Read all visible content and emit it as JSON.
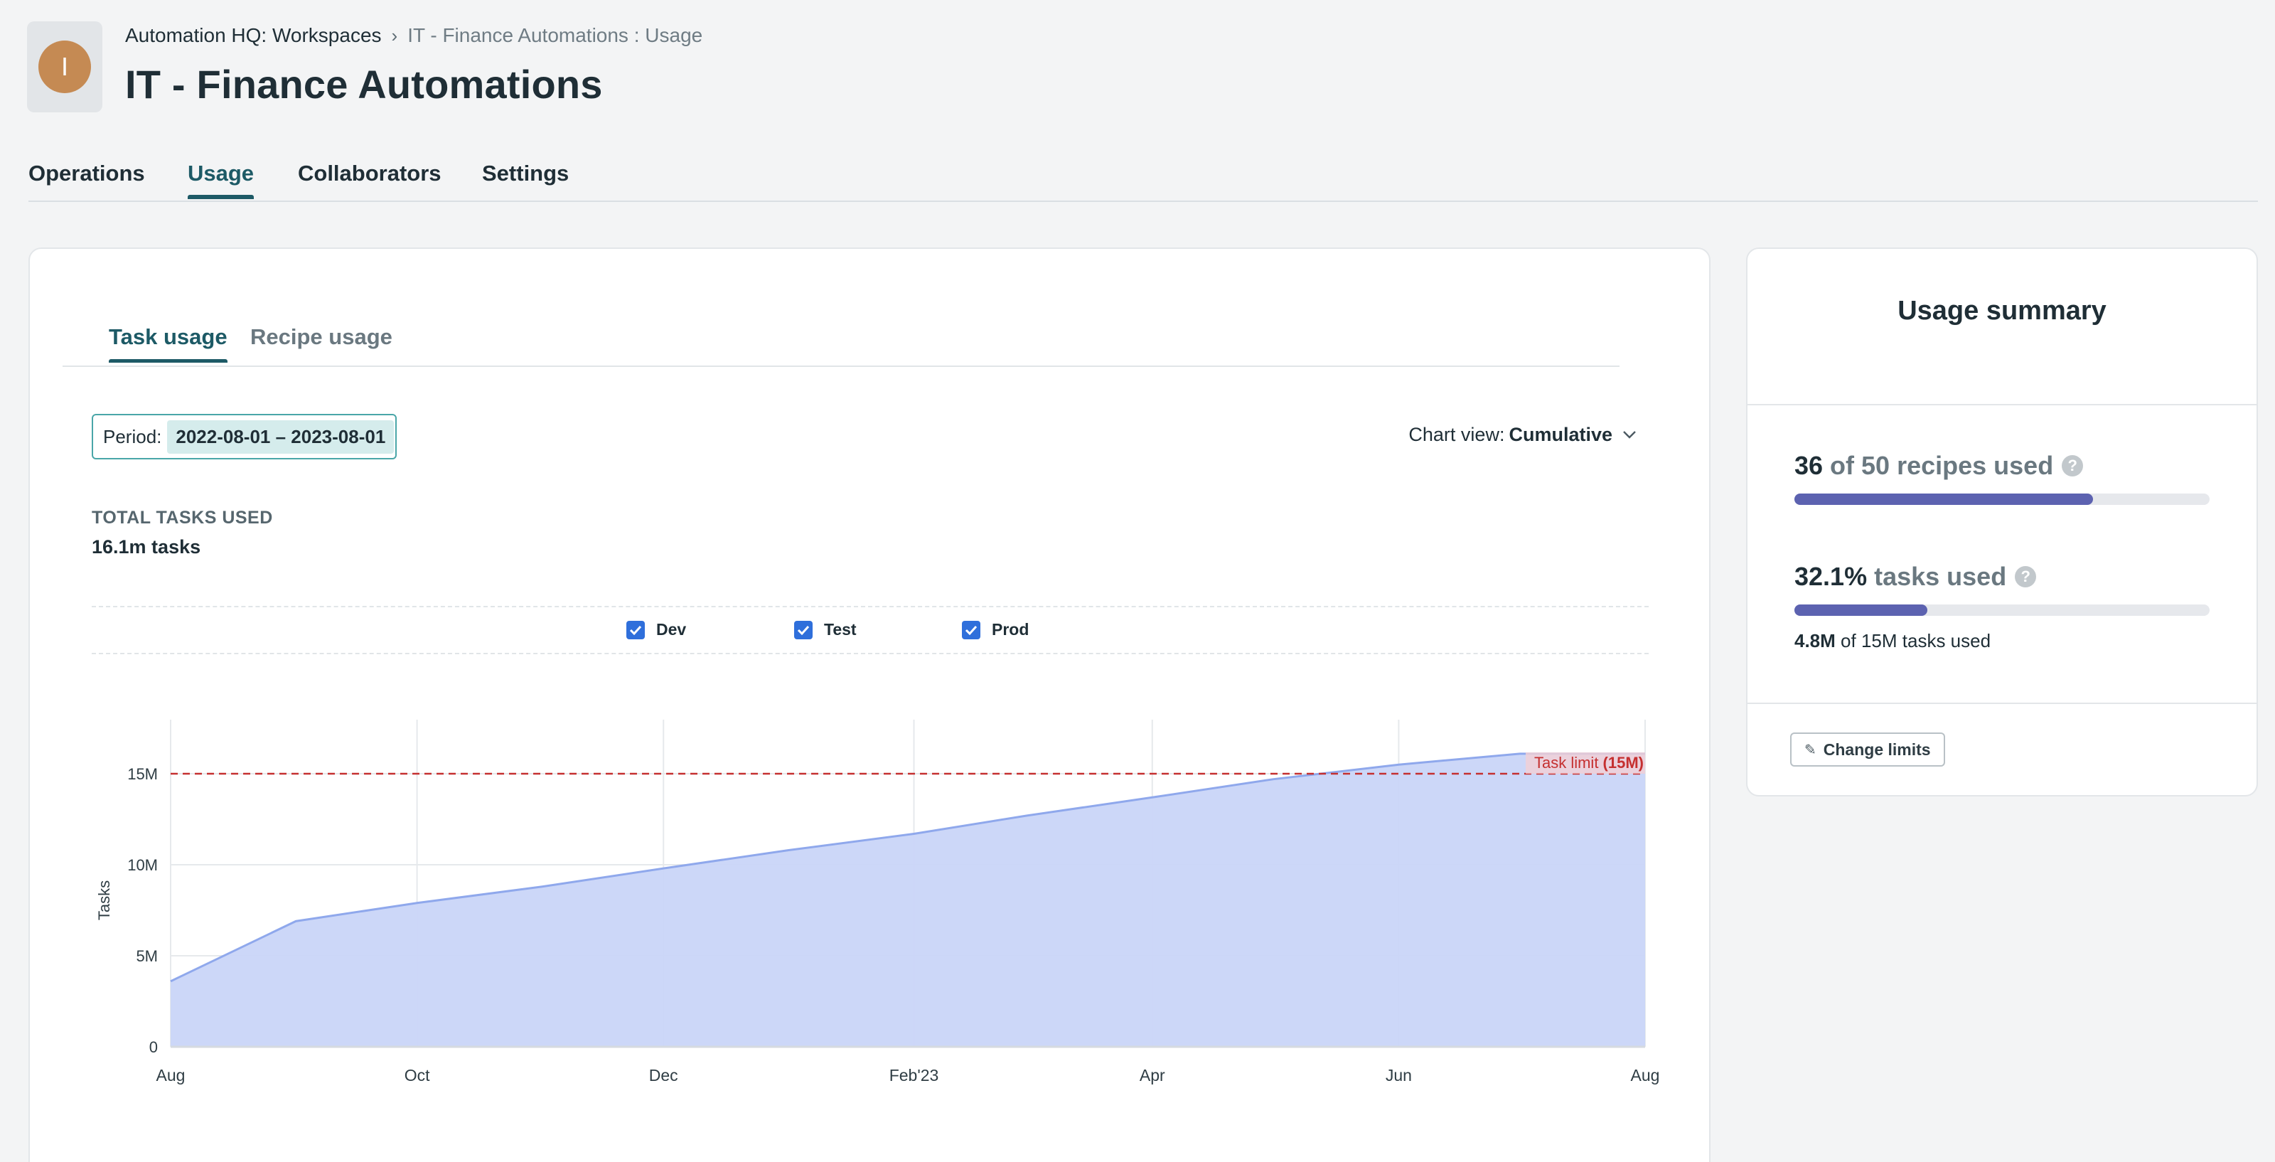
{
  "header": {
    "avatar_letter": "I",
    "breadcrumb": {
      "parent": "Automation HQ: Workspaces",
      "current": "IT - Finance Automations : Usage"
    },
    "title": "IT - Finance Automations"
  },
  "tabs": [
    "Operations",
    "Usage",
    "Collaborators",
    "Settings"
  ],
  "active_tab": "Usage",
  "usage": {
    "sub_tabs": [
      "Task usage",
      "Recipe usage"
    ],
    "active_sub_tab": "Task usage",
    "period_label": "Period:",
    "period_value": "2022-08-01 – 2023-08-01",
    "chart_view_label": "Chart view:",
    "chart_view_value": "Cumulative",
    "total_label": "TOTAL TASKS USED",
    "total_value": "16.1m tasks",
    "legend": [
      "Dev",
      "Test",
      "Prod"
    ]
  },
  "chart_data": {
    "type": "area",
    "ylabel": "Tasks",
    "x_ticks": [
      "Aug",
      "Oct",
      "Dec",
      "Feb'23",
      "Apr",
      "Jun",
      "Aug"
    ],
    "y_ticks": [
      "0",
      "5M",
      "10M",
      "15M"
    ],
    "ylim": [
      0,
      18000000
    ],
    "grid": true,
    "limit_line": {
      "value": 15000000,
      "label_prefix": "Task limit",
      "label_value": "(15M)"
    },
    "points": [
      {
        "date": "2022-08-01",
        "value": 3600000
      },
      {
        "date": "2022-09-01",
        "value": 6900000
      },
      {
        "date": "2022-10-01",
        "value": 7900000
      },
      {
        "date": "2022-11-01",
        "value": 8800000
      },
      {
        "date": "2022-12-01",
        "value": 9800000
      },
      {
        "date": "2023-01-01",
        "value": 10800000
      },
      {
        "date": "2023-02-01",
        "value": 11700000
      },
      {
        "date": "2023-03-01",
        "value": 12700000
      },
      {
        "date": "2023-04-01",
        "value": 13700000
      },
      {
        "date": "2023-05-01",
        "value": 14700000
      },
      {
        "date": "2023-06-01",
        "value": 15500000
      },
      {
        "date": "2023-07-01",
        "value": 16100000
      },
      {
        "date": "2023-08-01",
        "value": 16100000
      }
    ],
    "colors": {
      "area": "#c9d5f8",
      "line": "#8fa8ec",
      "limit": "#c53030"
    }
  },
  "summary": {
    "title": "Usage summary",
    "recipes_count": "36",
    "recipes_text": "of 50 recipes used",
    "recipes_fraction": 0.72,
    "tasks_percent": "32.1%",
    "tasks_text": "tasks used",
    "tasks_fraction": 0.321,
    "tasks_detail_bold": "4.8M",
    "tasks_detail": "of 15M tasks used",
    "change_limits": "Change limits"
  }
}
